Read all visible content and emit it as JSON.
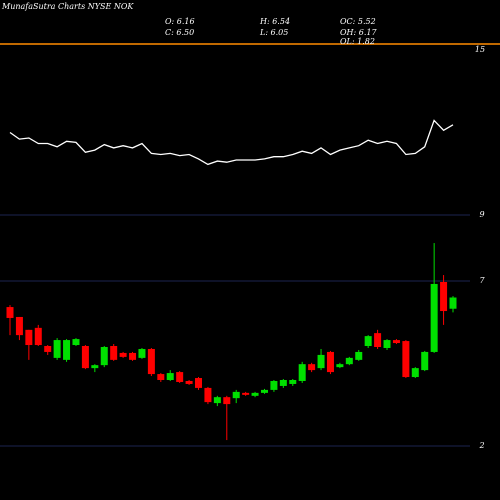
{
  "chart_data": {
    "type": "candlestick",
    "title": "MunafaSutra Charts NYSE NOK",
    "annotations": [
      "O: 6.16",
      "C: 6.50",
      "H: 6.54",
      "L: 6.05",
      "OC: 5.52",
      "OH: 6.17",
      "OL: 1.82"
    ],
    "up_color": "#00e000",
    "down_color": "#ff0000",
    "ylim": [
      2,
      9
    ],
    "yticks": [
      2,
      7,
      9
    ],
    "grid": true,
    "y2lim": [
      0,
      15
    ],
    "y2ticks": [
      15
    ],
    "open": [
      6.21,
      5.91,
      5.52,
      5.58,
      5.03,
      4.67,
      4.61,
      5.06,
      5.03,
      4.36,
      4.45,
      5.03,
      4.82,
      4.82,
      4.67,
      4.94,
      4.18,
      4.0,
      4.24,
      3.97,
      4.06,
      3.76,
      3.3,
      3.48,
      3.45,
      3.61,
      3.52,
      3.61,
      3.7,
      3.82,
      3.88,
      3.97,
      4.48,
      4.36,
      4.85,
      4.39,
      4.48,
      4.61,
      5.03,
      5.42,
      4.97,
      5.21,
      5.18,
      4.09,
      4.3,
      4.85,
      6.97,
      6.16
    ],
    "high": [
      6.27,
      5.91,
      5.52,
      5.67,
      5.06,
      5.27,
      5.24,
      5.27,
      5.06,
      4.48,
      5.03,
      5.09,
      4.85,
      4.85,
      4.97,
      4.97,
      4.21,
      4.3,
      4.27,
      4.0,
      4.09,
      3.79,
      3.52,
      3.52,
      3.7,
      3.64,
      3.64,
      3.73,
      4.0,
      4.03,
      4.03,
      4.55,
      4.52,
      4.94,
      4.88,
      4.52,
      4.7,
      4.91,
      5.36,
      5.52,
      5.24,
      5.24,
      5.21,
      4.39,
      4.88,
      8.15,
      7.18,
      6.54
    ],
    "low": [
      5.36,
      5.21,
      4.61,
      5.03,
      4.76,
      4.61,
      4.55,
      5.03,
      4.33,
      4.24,
      4.39,
      4.58,
      4.67,
      4.58,
      4.64,
      4.12,
      3.94,
      3.97,
      3.91,
      3.85,
      3.7,
      3.27,
      3.21,
      2.18,
      3.3,
      3.52,
      3.48,
      3.58,
      3.64,
      3.76,
      3.82,
      3.91,
      4.24,
      4.3,
      4.18,
      4.36,
      4.45,
      4.58,
      4.97,
      4.94,
      4.91,
      5.09,
      4.06,
      4.06,
      4.27,
      4.82,
      5.67,
      6.05
    ],
    "close": [
      5.88,
      5.36,
      5.06,
      5.06,
      4.85,
      5.21,
      5.21,
      5.24,
      4.36,
      4.45,
      5.0,
      4.61,
      4.7,
      4.61,
      4.94,
      4.18,
      4.0,
      4.21,
      3.94,
      3.88,
      3.76,
      3.33,
      3.48,
      3.27,
      3.64,
      3.55,
      3.61,
      3.7,
      3.97,
      4.0,
      4.0,
      4.48,
      4.3,
      4.76,
      4.24,
      4.48,
      4.67,
      4.85,
      5.33,
      5.0,
      5.21,
      5.12,
      4.09,
      4.36,
      4.85,
      6.91,
      6.09,
      6.5
    ],
    "series": [
      {
        "color": "#ffffff",
        "axis": "y2",
        "values": [
          7.5,
          6.9,
          7.0,
          6.5,
          6.5,
          6.2,
          6.7,
          6.6,
          5.7,
          5.9,
          6.4,
          6.1,
          6.3,
          6.1,
          6.5,
          5.6,
          5.5,
          5.6,
          5.4,
          5.5,
          5.1,
          4.6,
          4.9,
          4.8,
          5.0,
          5.0,
          5.0,
          5.1,
          5.3,
          5.3,
          5.5,
          5.8,
          5.6,
          6.1,
          5.5,
          5.9,
          6.1,
          6.3,
          6.8,
          6.5,
          6.7,
          6.5,
          5.5,
          5.6,
          6.2,
          8.6,
          7.7,
          8.2
        ]
      }
    ]
  }
}
